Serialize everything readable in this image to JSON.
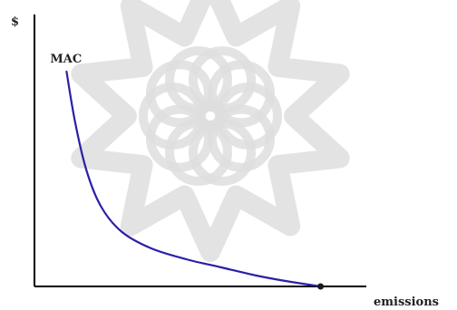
{
  "chart_data": {
    "type": "line",
    "title": "",
    "ylabel": "$",
    "xlabel": "emissions",
    "xlim": [
      0,
      1
    ],
    "ylim": [
      0,
      1
    ],
    "grid": false,
    "legend": "none",
    "colors": {
      "curve": "#2b1fa8",
      "axes": "#000000",
      "background_watermark": "#dedede"
    },
    "series": [
      {
        "name": "MAC",
        "x": [
          0.11,
          0.14,
          0.18,
          0.23,
          0.3,
          0.4,
          0.52,
          0.64,
          0.76,
          0.86,
          0.98
        ],
        "y": [
          0.79,
          0.6,
          0.42,
          0.29,
          0.2,
          0.14,
          0.1,
          0.07,
          0.04,
          0.02,
          0.0
        ]
      }
    ],
    "annotations": [
      {
        "text": "MAC",
        "attached_to": "curve-start"
      }
    ],
    "endpoint_marker": {
      "x": 0.98,
      "y": 0.0
    }
  }
}
